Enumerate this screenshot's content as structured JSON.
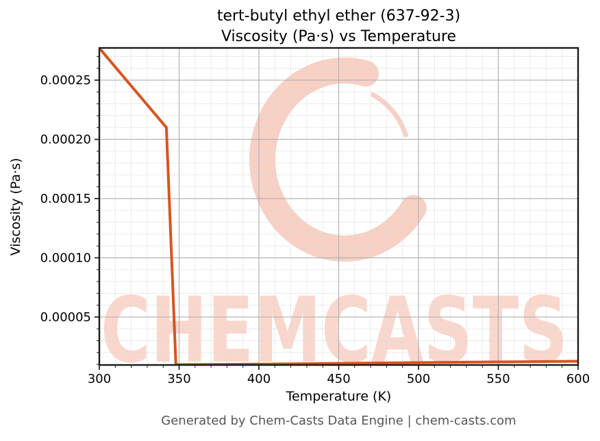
{
  "title": {
    "line1": "tert-butyl ethyl ether (637-92-3)",
    "line2": "Viscosity (Pa·s) vs Temperature"
  },
  "footer": {
    "text": "Generated by Chem-Casts Data Engine | chem-casts.com"
  },
  "watermark": {
    "text": "CHEMCASTS",
    "logo": "c-swirl-logo",
    "color": "#f8d0c4",
    "text_color": "#fad7cc"
  },
  "colors": {
    "line": "#d9541f",
    "grid_major": "#b2b2b2",
    "grid_minor": "#d9d9d9",
    "spine": "#1a1a1a",
    "tick_label": "#000000"
  },
  "chart_data": {
    "type": "line",
    "title": "tert-butyl ethyl ether (637-92-3) — Viscosity (Pa·s) vs Temperature",
    "xlabel": "Temperature (K)",
    "ylabel": "Viscosity (Pa·s)",
    "xlim": [
      300,
      600
    ],
    "ylim": [
      9.5e-06,
      0.0002772
    ],
    "grid": {
      "major": true,
      "minor": true
    },
    "legend": "none",
    "x_ticks": [
      {
        "v": 300,
        "label": "300"
      },
      {
        "v": 350,
        "label": "350"
      },
      {
        "v": 400,
        "label": "400"
      },
      {
        "v": 450,
        "label": "450"
      },
      {
        "v": 500,
        "label": "500"
      },
      {
        "v": 550,
        "label": "550"
      },
      {
        "v": 600,
        "label": "600"
      }
    ],
    "y_ticks": [
      {
        "v": 5e-05,
        "label": "0.00005"
      },
      {
        "v": 0.0001,
        "label": "0.00010"
      },
      {
        "v": 0.00015,
        "label": "0.00015"
      },
      {
        "v": 0.0002,
        "label": "0.00020"
      },
      {
        "v": 0.00025,
        "label": "0.00025"
      }
    ],
    "x_minor_step": 10,
    "y_minor_step": 1e-05,
    "series": [
      {
        "name": "viscosity",
        "color": "#d9541f",
        "points": [
          [
            300,
            0.000277
          ],
          [
            342,
            0.00021
          ],
          [
            348,
            9.8e-06
          ],
          [
            400,
            1.02e-05
          ],
          [
            450,
            1.09e-05
          ],
          [
            500,
            1.15e-05
          ],
          [
            550,
            1.21e-05
          ],
          [
            600,
            1.27e-05
          ]
        ]
      }
    ]
  }
}
